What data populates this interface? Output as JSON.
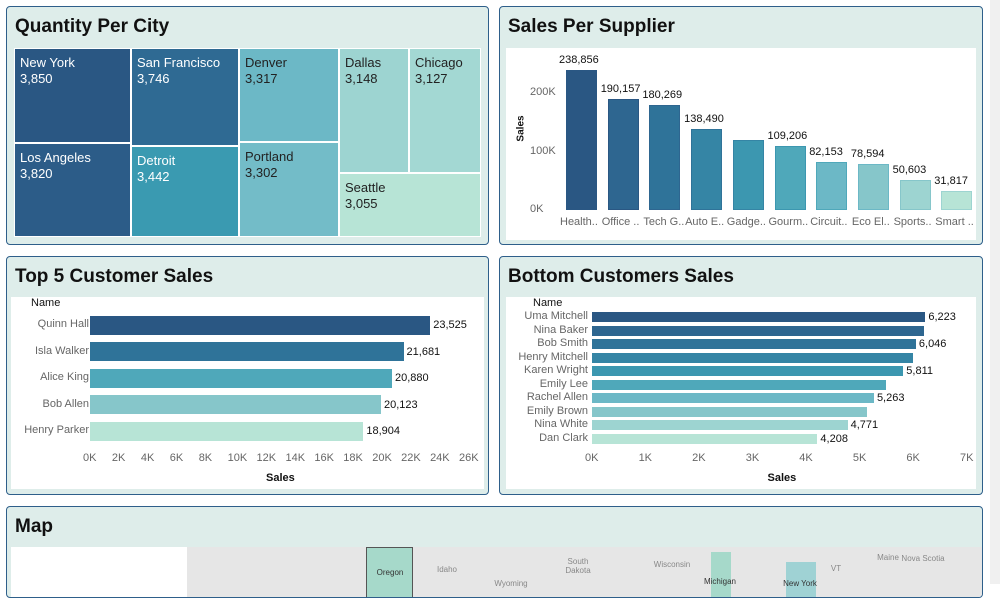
{
  "treemap": {
    "title": "Quantity Per City",
    "cells": [
      {
        "city": "New York",
        "qty": "3,850",
        "color": "#2a5783"
      },
      {
        "city": "Los Angeles",
        "qty": "3,820",
        "color": "#2c5c88"
      },
      {
        "city": "San Francisco",
        "qty": "3,746",
        "color": "#2f6a93"
      },
      {
        "city": "Detroit",
        "qty": "3,442",
        "color": "#3a9ab1"
      },
      {
        "city": "Denver",
        "qty": "3,317",
        "color": "#6cb8c6"
      },
      {
        "city": "Portland",
        "qty": "3,302",
        "color": "#73bcc8"
      },
      {
        "city": "Dallas",
        "qty": "3,148",
        "color": "#9dd4d1"
      },
      {
        "city": "Chicago",
        "qty": "3,127",
        "color": "#a3d8d3"
      },
      {
        "city": "Seattle",
        "qty": "3,055",
        "color": "#b7e4d6"
      }
    ]
  },
  "chart_data": [
    {
      "type": "bar",
      "title": "Sales Per Supplier",
      "ylabel": "Sales",
      "ylim": [
        0,
        260000
      ],
      "yticks": [
        "0K",
        "100K",
        "200K"
      ],
      "categories": [
        "Health..",
        "Office ..",
        "Tech G..",
        "Auto E..",
        "Gadge..",
        "Gourm..",
        "Circuit..",
        "Eco El..",
        "Sports..",
        "Smart .."
      ],
      "values": [
        238856,
        190157,
        180269,
        138490,
        120000,
        109206,
        82153,
        78594,
        50603,
        31817
      ],
      "labels": [
        "238,856",
        "190,157",
        "180,269",
        "138,490",
        "",
        "109,206",
        "82,153",
        "78,594",
        "50,603",
        "31,817"
      ]
    },
    {
      "type": "bar",
      "orientation": "horizontal",
      "title": "Top 5 Customer Sales",
      "xlabel": "Sales",
      "ylabel": "Name",
      "xlim": [
        0,
        26000
      ],
      "xticks": [
        "0K",
        "2K",
        "4K",
        "6K",
        "8K",
        "10K",
        "12K",
        "14K",
        "16K",
        "18K",
        "20K",
        "22K",
        "24K",
        "26K"
      ],
      "categories": [
        "Quinn Hall",
        "Isla Walker",
        "Alice King",
        "Bob Allen",
        "Henry Parker"
      ],
      "values": [
        23525,
        21681,
        20880,
        20123,
        18904
      ],
      "labels": [
        "23,525",
        "21,681",
        "20,880",
        "20,123",
        "18,904"
      ]
    },
    {
      "type": "bar",
      "orientation": "horizontal",
      "title": "Bottom Customers Sales",
      "xlabel": "Sales",
      "ylabel": "Name",
      "xlim": [
        0,
        7000
      ],
      "xticks": [
        "0K",
        "1K",
        "2K",
        "3K",
        "4K",
        "5K",
        "6K",
        "7K"
      ],
      "categories": [
        "Uma Mitchell",
        "Nina Baker",
        "Bob Smith",
        "Henry Mitchell",
        "Karen Wright",
        "Emily Lee",
        "Rachel Allen",
        "Emily Brown",
        "Nina White",
        "Dan Clark"
      ],
      "values": [
        6223,
        6190,
        6046,
        6000,
        5811,
        5480,
        5263,
        5130,
        4771,
        4208
      ],
      "labels": [
        "6,223",
        "",
        "6,046",
        "",
        "5,811",
        "",
        "5,263",
        "",
        "4,771",
        "4,208"
      ]
    }
  ],
  "colors": [
    "#2a5783",
    "#2e6690",
    "#2f7399",
    "#3585a5",
    "#3c97b0",
    "#4fa8ba",
    "#6cb8c6",
    "#86c6ca",
    "#9dd4d1",
    "#b7e4d6"
  ],
  "map": {
    "title": "Map",
    "labels": [
      "Oregon",
      "Idaho",
      "South Dakota",
      "Wisconsin",
      "Michigan",
      "New York",
      "Maine",
      "Nova Scotia",
      "Wyoming",
      "VT"
    ]
  }
}
